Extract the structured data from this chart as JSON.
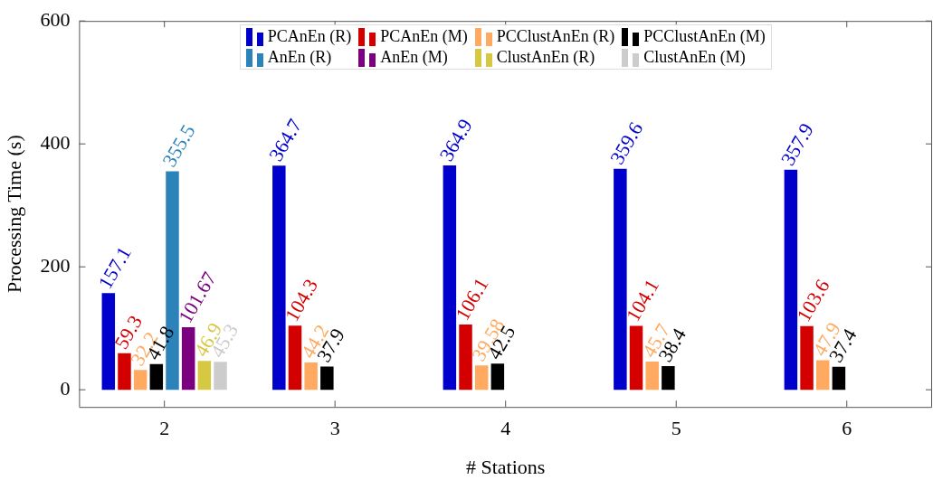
{
  "chart_data": {
    "type": "bar",
    "xlabel": "# Stations",
    "ylabel": "Processing Time (s)",
    "categories": [
      "2",
      "3",
      "4",
      "5",
      "6"
    ],
    "series": [
      {
        "name": "PCAnEn (R)",
        "color": "#0000cc",
        "values": [
          157.1,
          364.7,
          364.9,
          359.6,
          357.9
        ]
      },
      {
        "name": "PCAnEn (M)",
        "color": "#d40000",
        "values": [
          59.3,
          104.3,
          106.1,
          104.1,
          103.6
        ]
      },
      {
        "name": "PCClustAnEn (R)",
        "color": "#ffaa60",
        "values": [
          32.2,
          44.2,
          39.58,
          45.7,
          47.9
        ]
      },
      {
        "name": "PCClustAnEn (M)",
        "color": "#000000",
        "values": [
          41.8,
          37.9,
          42.5,
          38.4,
          37.4
        ]
      },
      {
        "name": "AnEn (R)",
        "color": "#2b83ba",
        "values": [
          355.5,
          null,
          null,
          null,
          null
        ]
      },
      {
        "name": "AnEn (M)",
        "color": "#7b0080",
        "values": [
          101.67,
          null,
          null,
          null,
          null
        ]
      },
      {
        "name": "ClustAnEn (R)",
        "color": "#d7c842",
        "values": [
          46.9,
          null,
          null,
          null,
          null
        ]
      },
      {
        "name": "ClustAnEn (M)",
        "color": "#cccccc",
        "values": [
          45.3,
          null,
          null,
          null,
          null
        ]
      }
    ],
    "ylim": [
      -28,
      600
    ],
    "yticks": [
      0,
      200,
      400,
      600
    ],
    "grid": false,
    "legend": "top",
    "data_labels": true
  }
}
